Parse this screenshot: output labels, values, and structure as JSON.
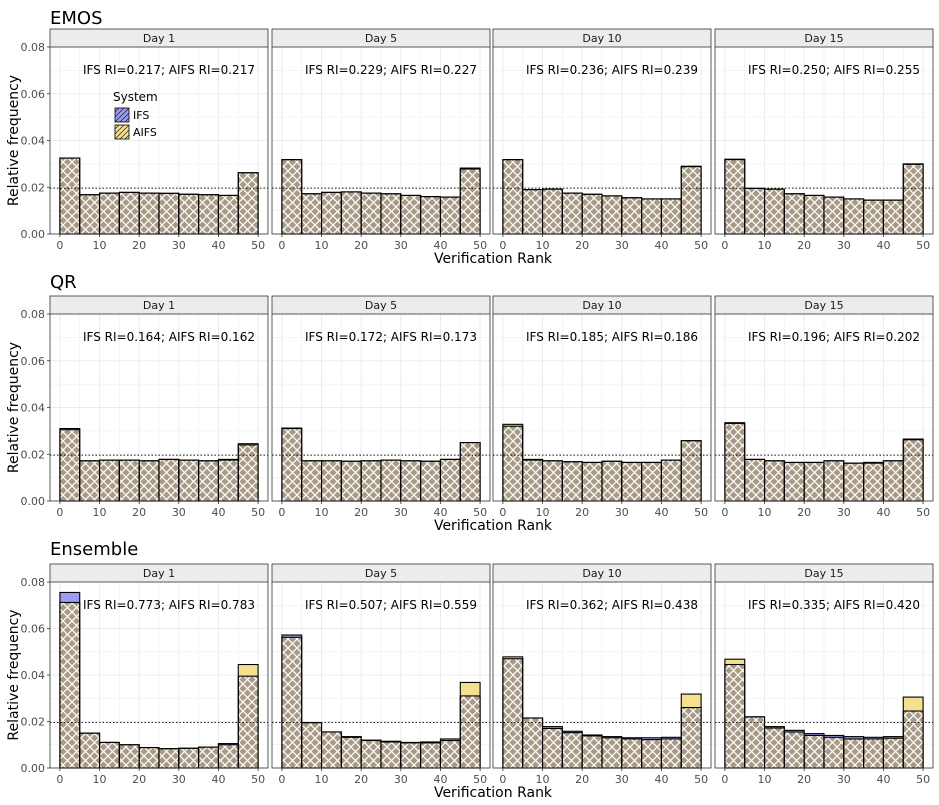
{
  "figure": {
    "ylabel": "Relative frequency",
    "xlabel": "Verification Rank",
    "legend_title": "System",
    "legend_items": [
      "IFS",
      "AIFS"
    ],
    "panel_titles": [
      "Day 1",
      "Day 5",
      "Day 10",
      "Day 15"
    ],
    "colors": {
      "ifs": "#9b9cf2",
      "aifs": "#f4e08e",
      "overlap": "#a89a84",
      "hatch": "#ffffff",
      "grid": "#ebebeb",
      "strip": "#ececec"
    }
  },
  "chart_data": [
    {
      "type": "bar",
      "title": "EMOS",
      "xlabel": "Verification Rank",
      "ylabel": "Relative frequency",
      "xlim": [
        -2.5,
        52.5
      ],
      "ylim": [
        0,
        0.08
      ],
      "xticks": [
        0,
        10,
        20,
        30,
        40,
        50
      ],
      "yticks": [
        "0.00",
        "0.02",
        "0.04",
        "0.06",
        "0.08"
      ],
      "reference_line": 0.0196,
      "bin_centers": [
        2.5,
        7.5,
        12.5,
        17.5,
        22.5,
        27.5,
        32.5,
        37.5,
        42.5,
        47.5
      ],
      "panels": [
        {
          "day": "Day 1",
          "annotation": "IFS RI=0.217; AIFS RI=0.217",
          "series": [
            {
              "name": "IFS",
              "values": [
                0.0325,
                0.0168,
                0.0175,
                0.0178,
                0.0175,
                0.0174,
                0.017,
                0.0168,
                0.0165,
                0.0262
              ]
            },
            {
              "name": "AIFS",
              "values": [
                0.0325,
                0.0168,
                0.0175,
                0.0178,
                0.0175,
                0.0174,
                0.017,
                0.0168,
                0.0165,
                0.0262
              ]
            }
          ]
        },
        {
          "day": "Day 5",
          "annotation": "IFS RI=0.229; AIFS RI=0.227",
          "series": [
            {
              "name": "IFS",
              "values": [
                0.0318,
                0.0172,
                0.0178,
                0.018,
                0.0175,
                0.0172,
                0.0165,
                0.016,
                0.0158,
                0.0282
              ]
            },
            {
              "name": "AIFS",
              "values": [
                0.0318,
                0.0172,
                0.0178,
                0.018,
                0.0175,
                0.0172,
                0.0165,
                0.016,
                0.0158,
                0.0278
              ]
            }
          ]
        },
        {
          "day": "Day 10",
          "annotation": "IFS RI=0.236; AIFS RI=0.239",
          "series": [
            {
              "name": "IFS",
              "values": [
                0.0318,
                0.019,
                0.0192,
                0.0175,
                0.017,
                0.0163,
                0.0155,
                0.015,
                0.015,
                0.029
              ]
            },
            {
              "name": "AIFS",
              "values": [
                0.0318,
                0.019,
                0.0192,
                0.0175,
                0.017,
                0.0163,
                0.0155,
                0.015,
                0.015,
                0.0288
              ]
            }
          ]
        },
        {
          "day": "Day 15",
          "annotation": "IFS RI=0.250; AIFS RI=0.255",
          "series": [
            {
              "name": "IFS",
              "values": [
                0.032,
                0.0195,
                0.0192,
                0.0172,
                0.0165,
                0.0158,
                0.015,
                0.0145,
                0.0145,
                0.03
              ]
            },
            {
              "name": "AIFS",
              "values": [
                0.0318,
                0.0195,
                0.0192,
                0.0172,
                0.0165,
                0.0158,
                0.015,
                0.0145,
                0.0145,
                0.0298
              ]
            }
          ]
        }
      ]
    },
    {
      "type": "bar",
      "title": "QR",
      "xlabel": "Verification Rank",
      "ylabel": "Relative frequency",
      "xlim": [
        -2.5,
        52.5
      ],
      "ylim": [
        0,
        0.08
      ],
      "xticks": [
        0,
        10,
        20,
        30,
        40,
        50
      ],
      "yticks": [
        "0.00",
        "0.02",
        "0.04",
        "0.06",
        "0.08"
      ],
      "reference_line": 0.0196,
      "bin_centers": [
        2.5,
        7.5,
        12.5,
        17.5,
        22.5,
        27.5,
        32.5,
        37.5,
        42.5,
        47.5
      ],
      "panels": [
        {
          "day": "Day 1",
          "annotation": "IFS RI=0.164; AIFS RI=0.162",
          "series": [
            {
              "name": "IFS",
              "values": [
                0.0305,
                0.0172,
                0.0175,
                0.0175,
                0.0172,
                0.0178,
                0.0175,
                0.0172,
                0.0175,
                0.024
              ]
            },
            {
              "name": "AIFS",
              "values": [
                0.031,
                0.0172,
                0.0175,
                0.0175,
                0.0172,
                0.0178,
                0.0175,
                0.0172,
                0.0178,
                0.0245
              ]
            }
          ]
        },
        {
          "day": "Day 5",
          "annotation": "IFS RI=0.172; AIFS RI=0.173",
          "series": [
            {
              "name": "IFS",
              "values": [
                0.0312,
                0.0172,
                0.0172,
                0.017,
                0.0172,
                0.0175,
                0.0172,
                0.017,
                0.0178,
                0.025
              ]
            },
            {
              "name": "AIFS",
              "values": [
                0.031,
                0.0172,
                0.0172,
                0.017,
                0.0172,
                0.0175,
                0.0172,
                0.017,
                0.0178,
                0.025
              ]
            }
          ]
        },
        {
          "day": "Day 10",
          "annotation": "IFS RI=0.185; AIFS RI=0.186",
          "series": [
            {
              "name": "IFS",
              "values": [
                0.032,
                0.0175,
                0.0172,
                0.0168,
                0.0165,
                0.017,
                0.0165,
                0.0165,
                0.0175,
                0.0258
              ]
            },
            {
              "name": "AIFS",
              "values": [
                0.0328,
                0.0178,
                0.0172,
                0.0168,
                0.0165,
                0.017,
                0.0165,
                0.0165,
                0.0175,
                0.0258
              ]
            }
          ]
        },
        {
          "day": "Day 15",
          "annotation": "IFS RI=0.196; AIFS RI=0.202",
          "series": [
            {
              "name": "IFS",
              "values": [
                0.0335,
                0.0178,
                0.0172,
                0.0165,
                0.0165,
                0.0172,
                0.0162,
                0.0162,
                0.0172,
                0.0262
              ]
            },
            {
              "name": "AIFS",
              "values": [
                0.0332,
                0.0178,
                0.0172,
                0.0165,
                0.0165,
                0.0172,
                0.0162,
                0.0165,
                0.0172,
                0.0265
              ]
            }
          ]
        }
      ]
    },
    {
      "type": "bar",
      "title": "Ensemble",
      "xlabel": "Verification Rank",
      "ylabel": "Relative frequency",
      "xlim": [
        -2.5,
        52.5
      ],
      "ylim": [
        0,
        0.08
      ],
      "xticks": [
        0,
        10,
        20,
        30,
        40,
        50
      ],
      "yticks": [
        "0.00",
        "0.02",
        "0.04",
        "0.06",
        "0.08"
      ],
      "reference_line": 0.0196,
      "bin_centers": [
        2.5,
        7.5,
        12.5,
        17.5,
        22.5,
        27.5,
        32.5,
        37.5,
        42.5,
        47.5
      ],
      "panels": [
        {
          "day": "Day 1",
          "annotation": "IFS RI=0.773; AIFS RI=0.783",
          "series": [
            {
              "name": "IFS",
              "values": [
                0.0755,
                0.015,
                0.011,
                0.01,
                0.0088,
                0.0083,
                0.0085,
                0.009,
                0.0105,
                0.0395
              ]
            },
            {
              "name": "AIFS",
              "values": [
                0.0712,
                0.015,
                0.011,
                0.01,
                0.0088,
                0.0083,
                0.0085,
                0.009,
                0.01,
                0.0445
              ]
            }
          ]
        },
        {
          "day": "Day 5",
          "annotation": "IFS RI=0.507; AIFS RI=0.559",
          "series": [
            {
              "name": "IFS",
              "values": [
                0.0572,
                0.0195,
                0.0155,
                0.0135,
                0.012,
                0.0115,
                0.011,
                0.0112,
                0.0125,
                0.031
              ]
            },
            {
              "name": "AIFS",
              "values": [
                0.0562,
                0.0195,
                0.0155,
                0.0132,
                0.0118,
                0.0112,
                0.0108,
                0.0108,
                0.0118,
                0.0368
              ]
            }
          ]
        },
        {
          "day": "Day 10",
          "annotation": "IFS RI=0.362; AIFS RI=0.438",
          "series": [
            {
              "name": "IFS",
              "values": [
                0.047,
                0.0215,
                0.0178,
                0.0158,
                0.0142,
                0.0135,
                0.013,
                0.013,
                0.0132,
                0.026
              ]
            },
            {
              "name": "AIFS",
              "values": [
                0.0478,
                0.0215,
                0.017,
                0.0152,
                0.0138,
                0.013,
                0.0125,
                0.0122,
                0.0125,
                0.0318
              ]
            }
          ]
        },
        {
          "day": "Day 15",
          "annotation": "IFS RI=0.335; AIFS RI=0.420",
          "series": [
            {
              "name": "IFS",
              "values": [
                0.0445,
                0.022,
                0.0178,
                0.0162,
                0.0148,
                0.014,
                0.0135,
                0.0132,
                0.0135,
                0.0245
              ]
            },
            {
              "name": "AIFS",
              "values": [
                0.0468,
                0.022,
                0.0172,
                0.0155,
                0.014,
                0.0132,
                0.0125,
                0.0125,
                0.0128,
                0.0305
              ]
            }
          ]
        }
      ]
    }
  ]
}
